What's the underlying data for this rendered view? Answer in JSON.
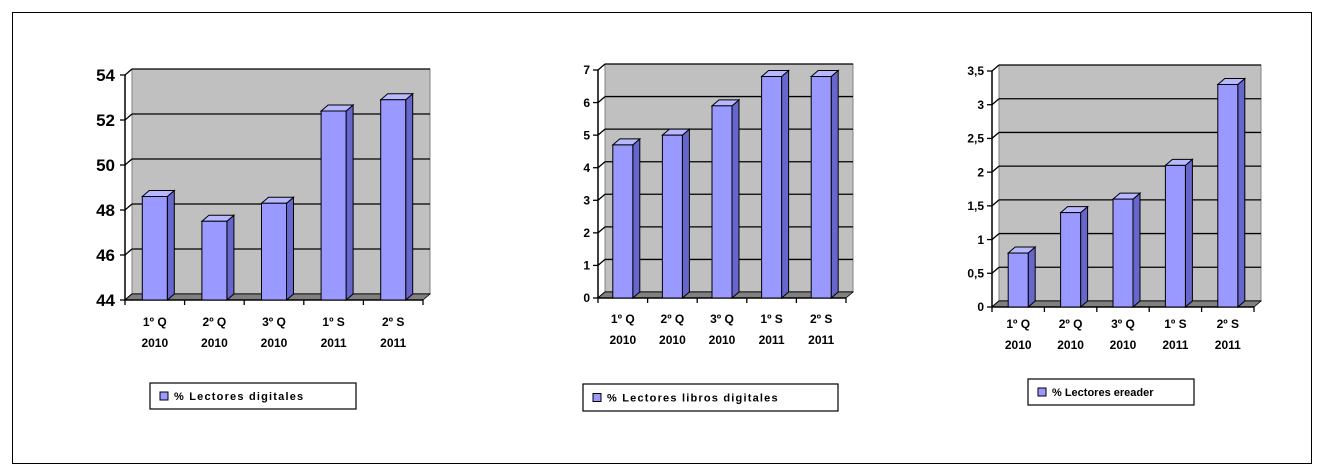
{
  "colors": {
    "plot_area": "#c0c0c0",
    "bar_front": "#9999ff",
    "bar_side": "#6666cc",
    "bar_top": "#b8b8ff",
    "bar_edge": "#000000",
    "floor": "#808080"
  },
  "chart_data": [
    {
      "type": "bar",
      "categories": [
        [
          "1º Q",
          "2010"
        ],
        [
          "2º Q",
          "2010"
        ],
        [
          "3º Q",
          "2010"
        ],
        [
          "1º S",
          "2011"
        ],
        [
          "2º S",
          "2011"
        ]
      ],
      "series": [
        {
          "name": "% Lectores digitales",
          "values": [
            48.6,
            47.5,
            48.3,
            52.4,
            52.9
          ]
        }
      ],
      "ylim": [
        44,
        54
      ],
      "yticks": [
        "44",
        "46",
        "48",
        "50",
        "52",
        "54"
      ],
      "ytick_values": [
        44,
        46,
        48,
        50,
        52,
        54
      ],
      "grid": true,
      "legend": "bottom",
      "style": "3d-column"
    },
    {
      "type": "bar",
      "categories": [
        [
          "1º Q",
          "2010"
        ],
        [
          "2º Q",
          "2010"
        ],
        [
          "3º Q",
          "2010"
        ],
        [
          "1º S",
          "2011"
        ],
        [
          "2º S",
          "2011"
        ]
      ],
      "series": [
        {
          "name": "% Lectores libros digitales",
          "values": [
            4.7,
            5.0,
            5.9,
            6.8,
            6.8
          ]
        }
      ],
      "ylim": [
        0,
        7
      ],
      "yticks": [
        "0",
        "1",
        "2",
        "3",
        "4",
        "5",
        "6",
        "7"
      ],
      "ytick_values": [
        0,
        1,
        2,
        3,
        4,
        5,
        6,
        7
      ],
      "grid": true,
      "legend": "bottom",
      "style": "3d-column"
    },
    {
      "type": "bar",
      "categories": [
        [
          "1º Q",
          "2010"
        ],
        [
          "2º Q",
          "2010"
        ],
        [
          "3º Q",
          "2010"
        ],
        [
          "1º S",
          "2011"
        ],
        [
          "2º S",
          "2011"
        ]
      ],
      "series": [
        {
          "name": "% Lectores ereader",
          "values": [
            0.8,
            1.4,
            1.6,
            2.1,
            3.3
          ]
        }
      ],
      "ylim": [
        0,
        3.5
      ],
      "yticks": [
        "0",
        "0,5",
        "1",
        "1,5",
        "2",
        "2,5",
        "3",
        "3,5"
      ],
      "ytick_values": [
        0,
        0.5,
        1,
        1.5,
        2,
        2.5,
        3,
        3.5
      ],
      "grid": true,
      "legend": "bottom",
      "style": "3d-column"
    }
  ]
}
